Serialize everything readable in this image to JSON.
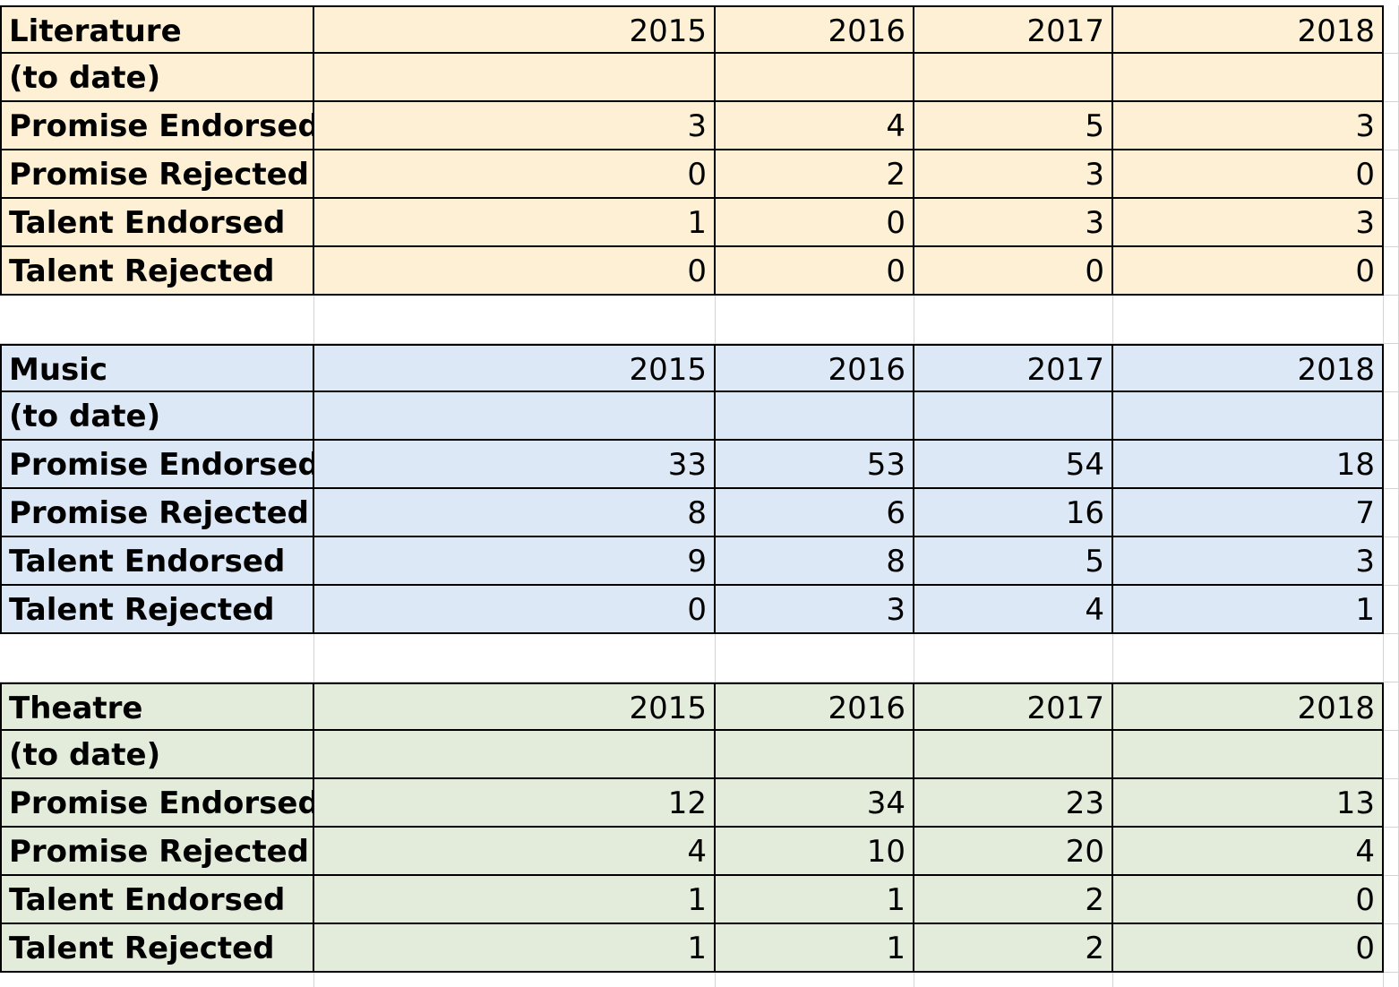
{
  "sections": [
    {
      "title": "Literature",
      "subtitle": "(to date)",
      "years": [
        "2015",
        "2016",
        "2017",
        "2018"
      ],
      "rows": [
        {
          "label": "Promise Endorsed",
          "values": [
            "3",
            "4",
            "5",
            "3"
          ]
        },
        {
          "label": "Promise Rejected",
          "values": [
            "0",
            "2",
            "3",
            "0"
          ]
        },
        {
          "label": "Talent Endorsed",
          "values": [
            "1",
            "0",
            "3",
            "3"
          ]
        },
        {
          "label": "Talent Rejected",
          "values": [
            "0",
            "0",
            "0",
            "0"
          ]
        }
      ],
      "color": "#fdf0d4"
    },
    {
      "title": "Music",
      "subtitle": "(to date)",
      "years": [
        "2015",
        "2016",
        "2017",
        "2018"
      ],
      "rows": [
        {
          "label": "Promise Endorsed",
          "values": [
            "33",
            "53",
            "54",
            "18"
          ]
        },
        {
          "label": "Promise Rejected",
          "values": [
            "8",
            "6",
            "16",
            "7"
          ]
        },
        {
          "label": "Talent Endorsed",
          "values": [
            "9",
            "8",
            "5",
            "3"
          ]
        },
        {
          "label": "Talent Rejected",
          "values": [
            "0",
            "3",
            "4",
            "1"
          ]
        }
      ],
      "color": "#dde8f6"
    },
    {
      "title": "Theatre",
      "subtitle": "(to date)",
      "years": [
        "2015",
        "2016",
        "2017",
        "2018"
      ],
      "rows": [
        {
          "label": "Promise Endorsed",
          "values": [
            "12",
            "34",
            "23",
            "13"
          ]
        },
        {
          "label": "Promise Rejected",
          "values": [
            "4",
            "10",
            "20",
            "4"
          ]
        },
        {
          "label": "Talent Endorsed",
          "values": [
            "1",
            "1",
            "2",
            "0"
          ]
        },
        {
          "label": "Talent Rejected",
          "values": [
            "1",
            "1",
            "2",
            "0"
          ]
        }
      ],
      "color": "#e3ecda"
    }
  ]
}
